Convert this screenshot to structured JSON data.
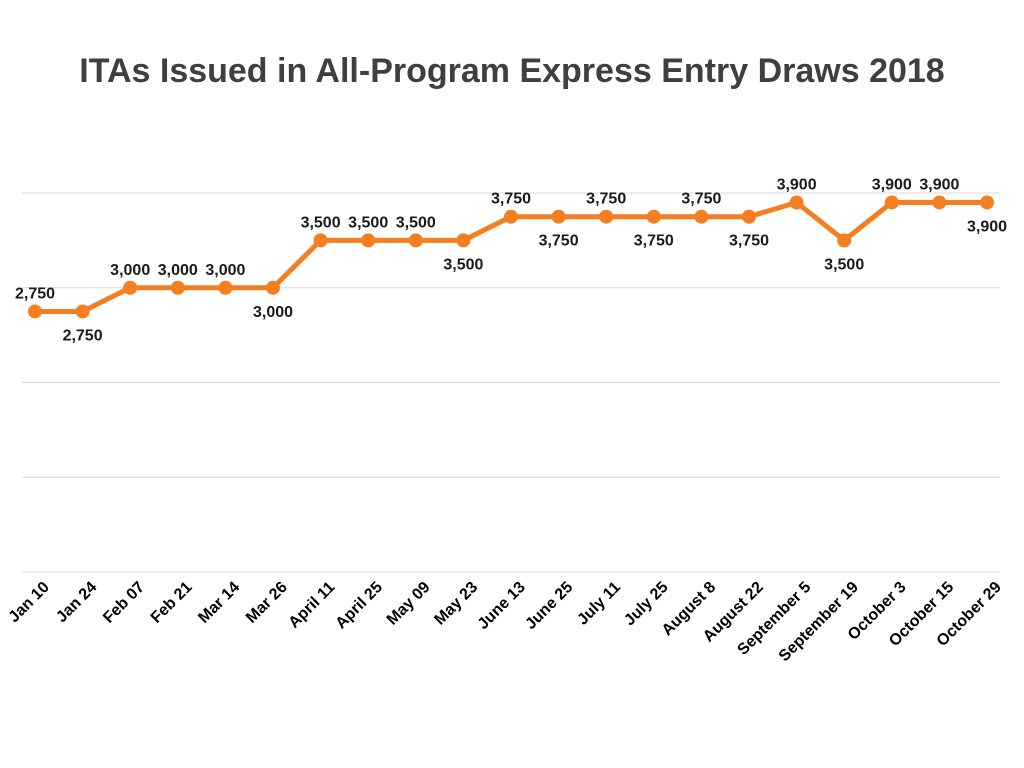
{
  "chart_data": {
    "type": "line",
    "title": "ITAs Issued in All-Program Express Entry Draws 2018",
    "xlabel": "",
    "ylabel": "",
    "categories": [
      "Jan 10",
      "Jan 24",
      "Feb 07",
      "Feb 21",
      "Mar 14",
      "Mar 26",
      "April 11",
      "April 25",
      "May 09",
      "May 23",
      "June 13",
      "June 25",
      "July 11",
      "July 25",
      "August 8",
      "August 22",
      "September 5",
      "September 19",
      "October 3",
      "October 15",
      "October 29"
    ],
    "series": [
      {
        "values": [
          2750,
          2750,
          3000,
          3000,
          3000,
          3000,
          3500,
          3500,
          3500,
          3500,
          3750,
          3750,
          3750,
          3750,
          3750,
          3750,
          3900,
          3500,
          3900,
          3900,
          3900
        ],
        "labels": [
          "2,750",
          "2,750",
          "3,000",
          "3,000",
          "3,000",
          "3,000",
          "3,500",
          "3,500",
          "3,500",
          "3,500",
          "3,750",
          "3,750",
          "3,750",
          "3,750",
          "3,750",
          "3,750",
          "3,900",
          "3,500",
          "3,900",
          "3,900",
          "3,900"
        ],
        "label_side": [
          "above",
          "below",
          "above",
          "above",
          "above",
          "below",
          "above",
          "above",
          "above",
          "below",
          "above",
          "below",
          "above",
          "below",
          "above",
          "below",
          "above",
          "below",
          "above",
          "above",
          "below"
        ]
      }
    ],
    "ylim": [
      0,
      4000
    ],
    "gridlines": [
      0,
      1000,
      2000,
      3000,
      4000
    ],
    "grid": true,
    "legend": "none",
    "colors": {
      "line": "#f47e20",
      "grid": "#d9d9d9",
      "title": "#3f3f3f"
    }
  }
}
